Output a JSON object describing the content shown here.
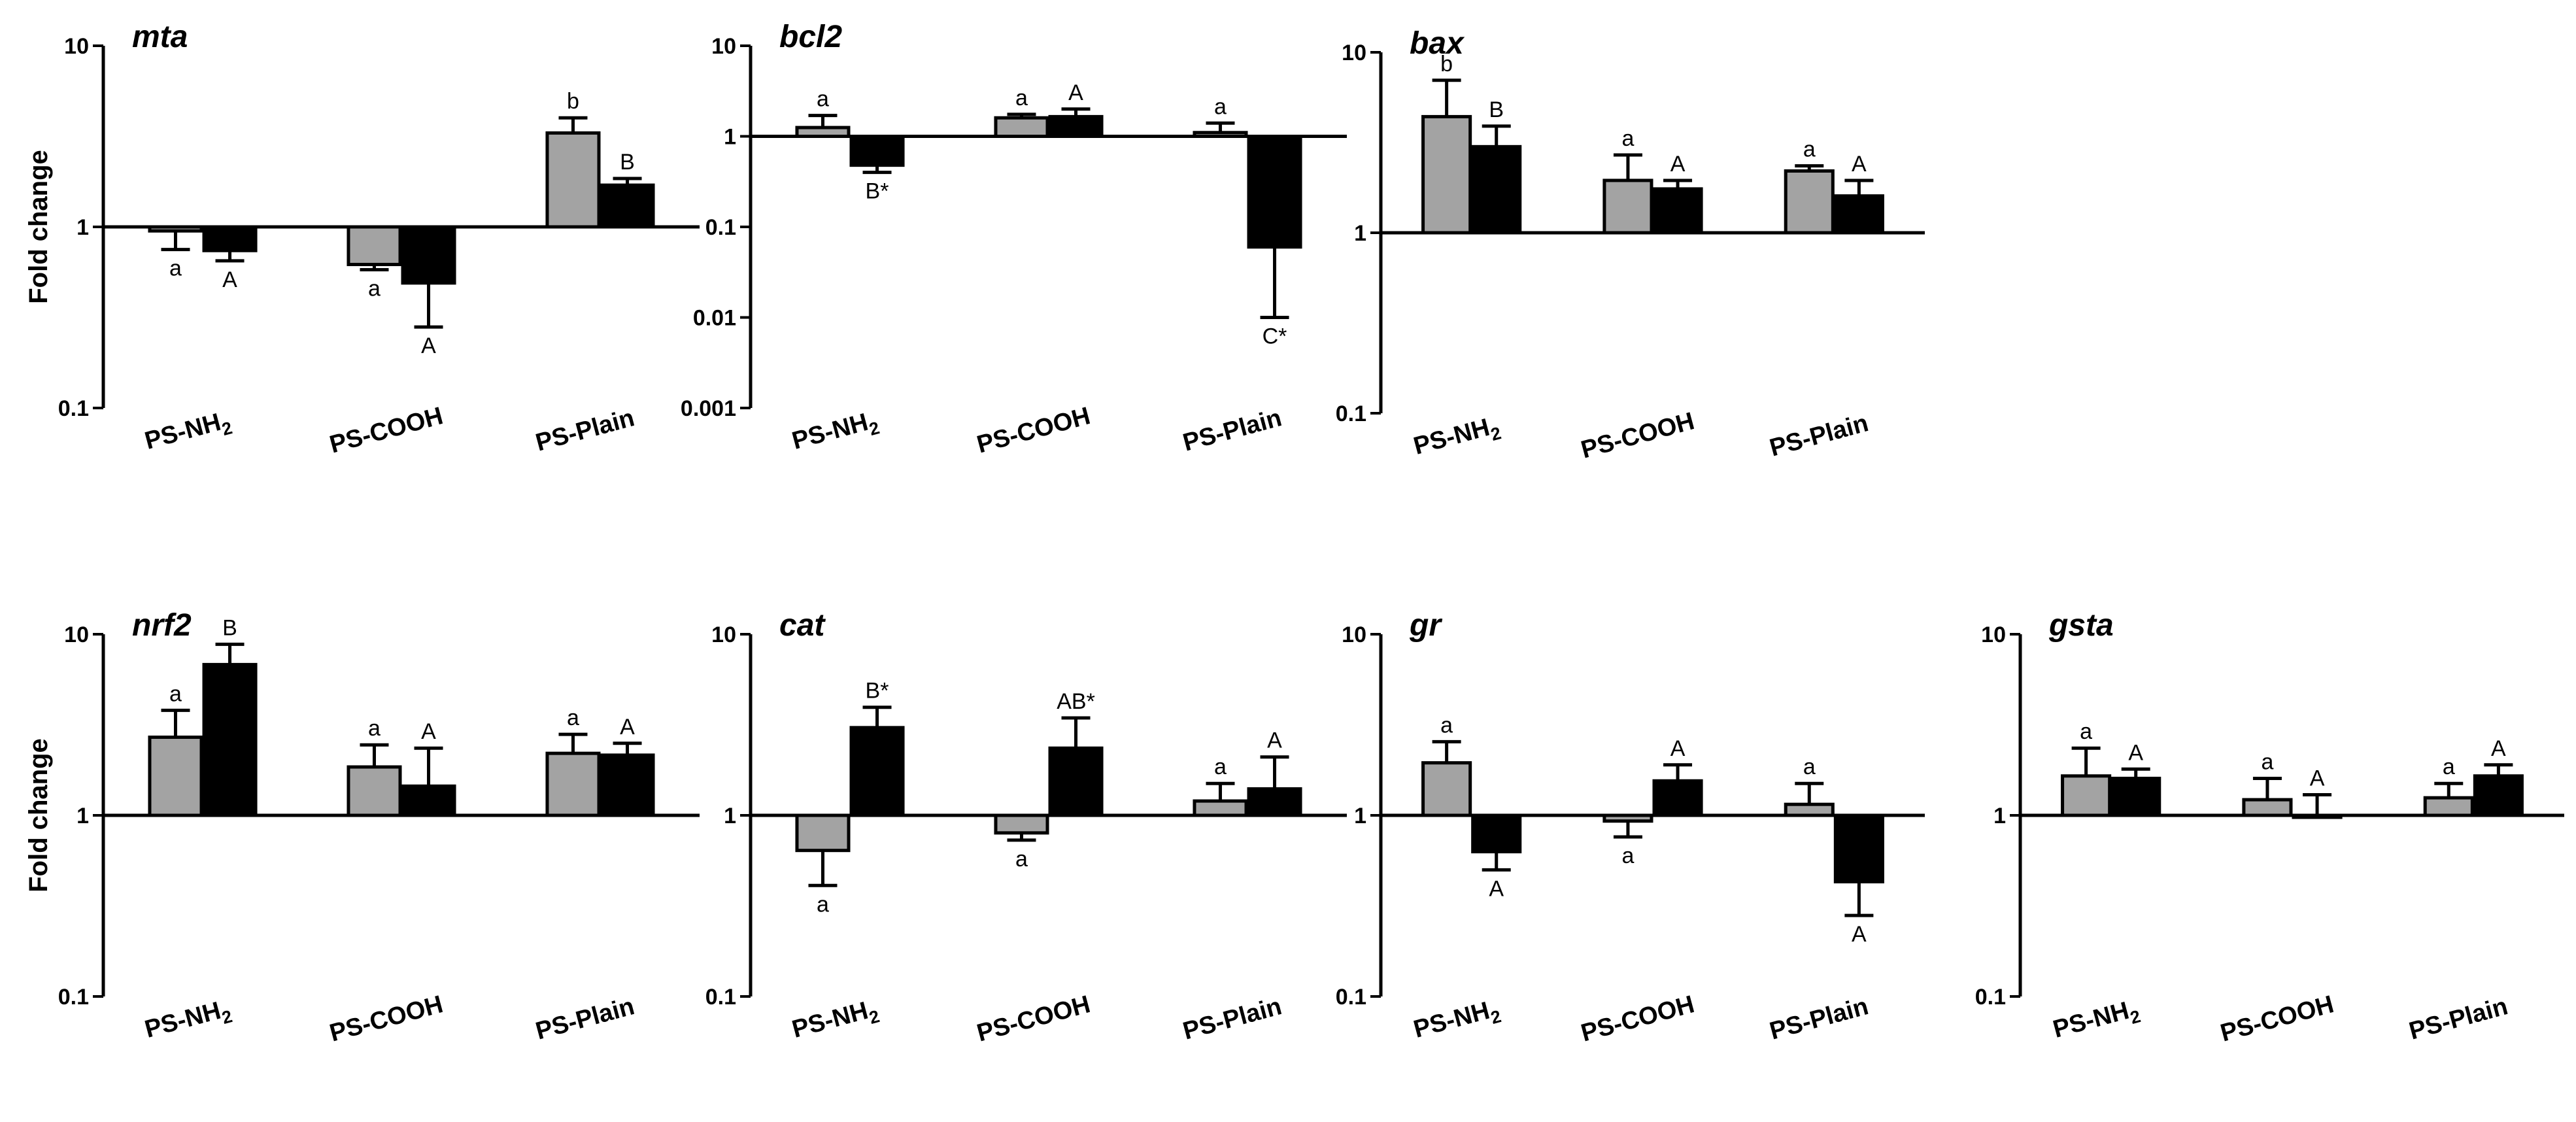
{
  "colors": {
    "group1": "#a3a3a3",
    "group2": "#000000",
    "background": "#ffffff"
  },
  "chart_data": [
    {
      "type": "bar",
      "title": "mta",
      "ylabel": "Fold change",
      "yscale": "log",
      "ylim": [
        0.1,
        10
      ],
      "yticks": [
        "0.1",
        "1",
        "10"
      ],
      "categories": [
        "PS-NH2",
        "PS-COOH",
        "PS-Plain"
      ],
      "series": [
        {
          "name": "gray",
          "values": [
            0.95,
            0.62,
            3.3
          ],
          "err_to": [
            0.75,
            0.58,
            4.0
          ],
          "labels": [
            "a",
            "a",
            "b"
          ]
        },
        {
          "name": "black",
          "values": [
            0.74,
            0.49,
            1.7
          ],
          "err_to": [
            0.65,
            0.28,
            1.85
          ],
          "labels": [
            "A",
            "A",
            "B"
          ]
        }
      ]
    },
    {
      "type": "bar",
      "title": "bcl2",
      "ylabel": "",
      "yscale": "log",
      "ylim": [
        0.001,
        10
      ],
      "yticks": [
        "0.001",
        "0.01",
        "0.1",
        "1",
        "10"
      ],
      "categories": [
        "PS-NH2",
        "PS-COOH",
        "PS-Plain"
      ],
      "series": [
        {
          "name": "gray",
          "values": [
            1.25,
            1.6,
            1.1
          ],
          "err_to": [
            1.7,
            1.75,
            1.4
          ],
          "labels": [
            "a",
            "a",
            "a"
          ]
        },
        {
          "name": "black",
          "values": [
            0.48,
            1.65,
            0.06
          ],
          "err_to": [
            0.4,
            2.0,
            0.01
          ],
          "labels": [
            "B*",
            "A",
            "C*"
          ]
        }
      ]
    },
    {
      "type": "bar",
      "title": "bax",
      "ylabel": "",
      "yscale": "log",
      "ylim": [
        0.1,
        10
      ],
      "yticks": [
        "0.1",
        "1",
        "10"
      ],
      "categories": [
        "PS-NH2",
        "PS-COOH",
        "PS-Plain"
      ],
      "series": [
        {
          "name": "gray",
          "values": [
            4.4,
            1.95,
            2.2
          ],
          "err_to": [
            7.0,
            2.7,
            2.35
          ],
          "labels": [
            "b",
            "a",
            "a"
          ]
        },
        {
          "name": "black",
          "values": [
            3.0,
            1.75,
            1.6
          ],
          "err_to": [
            3.9,
            1.95,
            1.95
          ],
          "labels": [
            "B",
            "A",
            "A"
          ]
        }
      ]
    },
    {
      "type": "bar",
      "title": "nrf2",
      "ylabel": "Fold change",
      "yscale": "log",
      "ylim": [
        0.1,
        10
      ],
      "yticks": [
        "0.1",
        "1",
        "10"
      ],
      "categories": [
        "PS-NH2",
        "PS-COOH",
        "PS-Plain"
      ],
      "series": [
        {
          "name": "gray",
          "values": [
            2.7,
            1.85,
            2.2
          ],
          "err_to": [
            3.8,
            2.45,
            2.8
          ],
          "labels": [
            "a",
            "a",
            "a"
          ]
        },
        {
          "name": "black",
          "values": [
            6.8,
            1.45,
            2.15
          ],
          "err_to": [
            8.8,
            2.35,
            2.5
          ],
          "labels": [
            "B",
            "A",
            "A"
          ]
        }
      ]
    },
    {
      "type": "bar",
      "title": "cat",
      "ylabel": "",
      "yscale": "log",
      "ylim": [
        0.1,
        10
      ],
      "yticks": [
        "0.1",
        "1",
        "10"
      ],
      "categories": [
        "PS-NH2",
        "PS-COOH",
        "PS-Plain"
      ],
      "series": [
        {
          "name": "gray",
          "values": [
            0.64,
            0.8,
            1.2
          ],
          "err_to": [
            0.41,
            0.73,
            1.5
          ],
          "labels": [
            "a",
            "a",
            "a"
          ]
        },
        {
          "name": "black",
          "values": [
            3.05,
            2.35,
            1.4
          ],
          "err_to": [
            3.95,
            3.45,
            2.1
          ],
          "labels": [
            "B*",
            "AB*",
            "A"
          ]
        }
      ]
    },
    {
      "type": "bar",
      "title": "gr",
      "ylabel": "",
      "yscale": "log",
      "ylim": [
        0.1,
        10
      ],
      "yticks": [
        "0.1",
        "1",
        "10"
      ],
      "categories": [
        "PS-NH2",
        "PS-COOH",
        "PS-Plain"
      ],
      "series": [
        {
          "name": "gray",
          "values": [
            1.95,
            0.93,
            1.15
          ],
          "err_to": [
            2.55,
            0.76,
            1.5
          ],
          "labels": [
            "a",
            "a",
            "a"
          ]
        },
        {
          "name": "black",
          "values": [
            0.63,
            1.55,
            0.43
          ],
          "err_to": [
            0.5,
            1.9,
            0.28
          ],
          "labels": [
            "A",
            "A",
            "A"
          ]
        }
      ]
    },
    {
      "type": "bar",
      "title": "gsta",
      "ylabel": "",
      "yscale": "log",
      "ylim": [
        0.1,
        10
      ],
      "yticks": [
        "0.1",
        "1",
        "10"
      ],
      "categories": [
        "PS-NH2",
        "PS-COOH",
        "PS-Plain"
      ],
      "series": [
        {
          "name": "gray",
          "values": [
            1.65,
            1.22,
            1.25
          ],
          "err_to": [
            2.35,
            1.6,
            1.5
          ],
          "labels": [
            "a",
            "a",
            "a"
          ]
        },
        {
          "name": "black",
          "values": [
            1.6,
            1.0,
            1.65
          ],
          "err_to": [
            1.8,
            1.3,
            1.9
          ],
          "labels": [
            "A",
            "A",
            "A"
          ]
        }
      ]
    }
  ]
}
